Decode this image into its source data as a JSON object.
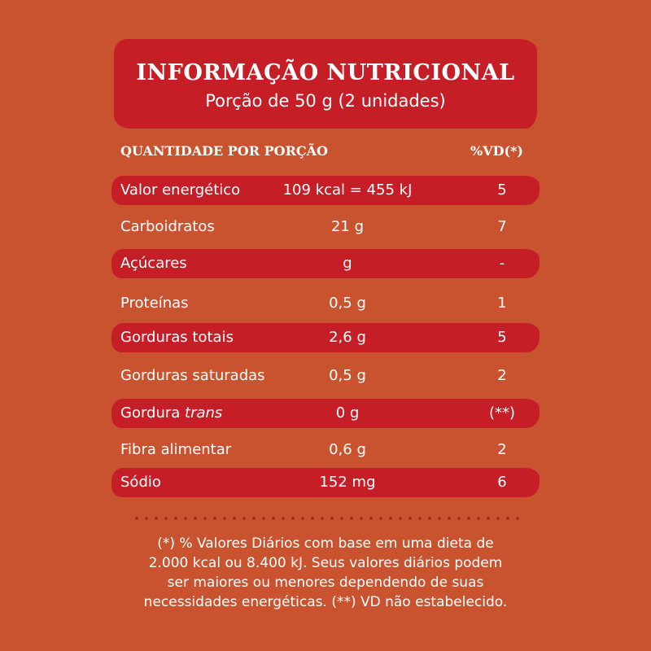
{
  "header": {
    "title": "INFORMAÇÃO NUTRICIONAL",
    "subtitle": "Porção de 50 g (2 unidades)"
  },
  "columns": {
    "left": "QUANTIDADE POR PORÇÃO",
    "right": "%VD(*)"
  },
  "rows": [
    {
      "name": "Valor energético",
      "name_suffix": "",
      "amount": "109 kcal = 455 kJ",
      "vd": "5",
      "highlighted": true
    },
    {
      "name": "Carboidratos",
      "name_suffix": "",
      "amount": "21 g",
      "vd": "7",
      "highlighted": false
    },
    {
      "name": "Açúcares",
      "name_suffix": "",
      "amount": "g",
      "vd": "-",
      "highlighted": true
    },
    {
      "name": "Proteínas",
      "name_suffix": "",
      "amount": "0,5 g",
      "vd": "1",
      "highlighted": false
    },
    {
      "name": "Gorduras totais",
      "name_suffix": "",
      "amount": "2,6 g",
      "vd": "5",
      "highlighted": true
    },
    {
      "name": "Gorduras saturadas",
      "name_suffix": "",
      "amount": "0,5 g",
      "vd": "2",
      "highlighted": false
    },
    {
      "name": "Gordura ",
      "name_suffix": "trans",
      "amount": "0 g",
      "vd": "(**)",
      "highlighted": true
    },
    {
      "name": "Fibra alimentar",
      "name_suffix": "",
      "amount": "0,6 g",
      "vd": "2",
      "highlighted": false
    },
    {
      "name": "Sódio",
      "name_suffix": "",
      "amount": "152 mg",
      "vd": "6",
      "highlighted": true
    }
  ],
  "footnote": {
    "line1": "(*) % Valores Diários com base em uma dieta de",
    "line2": "2.000 kcal ou 8.400 kJ. Seus valores diários podem",
    "line3": "ser maiores ou menores dependendo de suas",
    "line4": "necessidades energéticas. (**) VD não estabelecido."
  },
  "colors": {
    "background": "#c9532f",
    "highlight": "#c51e27",
    "text": "#ffffff",
    "dots": "#9b2a1e"
  }
}
